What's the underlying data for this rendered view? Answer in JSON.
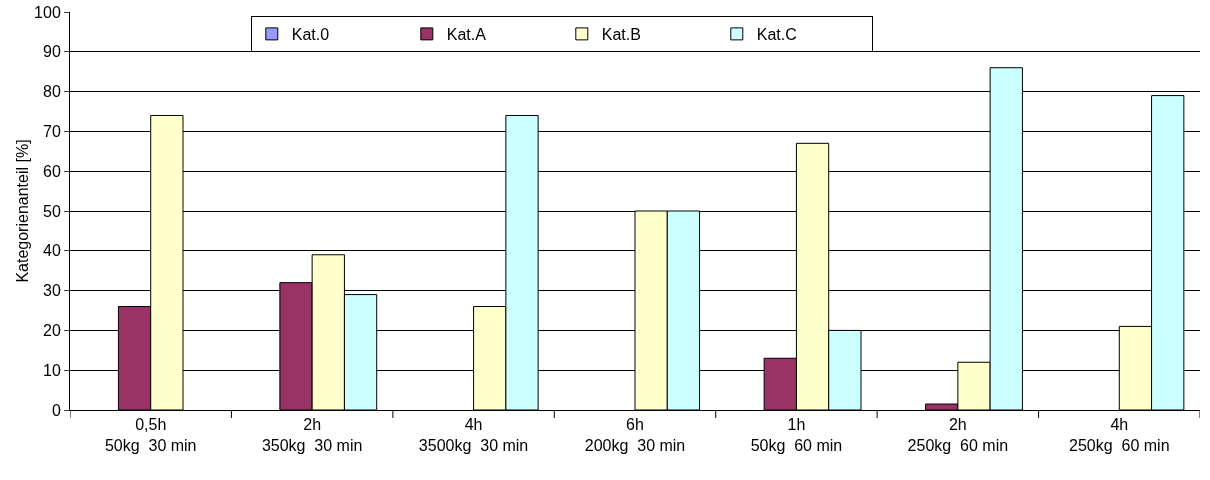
{
  "chart_data": {
    "type": "bar",
    "ylabel": "Kategorienanteil [%]",
    "categories": [
      "0,5h\n50kg  30 min",
      "2h\n350kg  30 min",
      "4h\n3500kg  30 min",
      "6h\n200kg  30 min",
      "1h\n50kg  60 min",
      "2h\n250kg  60 min",
      "4h\n250kg  60 min"
    ],
    "series": [
      {
        "name": "Kat.0",
        "color": "#9999ff",
        "values": [
          null,
          null,
          null,
          null,
          null,
          null,
          null
        ]
      },
      {
        "name": "Kat.A",
        "color": "#993366",
        "values": [
          26,
          32,
          null,
          null,
          13,
          1.5,
          null
        ]
      },
      {
        "name": "Kat.B",
        "color": "#ffffcc",
        "values": [
          74,
          39,
          26,
          50,
          67,
          12,
          21
        ]
      },
      {
        "name": "Kat.C",
        "color": "#ccffff",
        "values": [
          null,
          29,
          74,
          50,
          20,
          86,
          79
        ]
      }
    ],
    "ylim": [
      0,
      100
    ],
    "yticks": [
      0,
      10,
      20,
      30,
      40,
      50,
      60,
      70,
      80,
      90,
      100
    ],
    "grid": "y",
    "legend": "top"
  }
}
